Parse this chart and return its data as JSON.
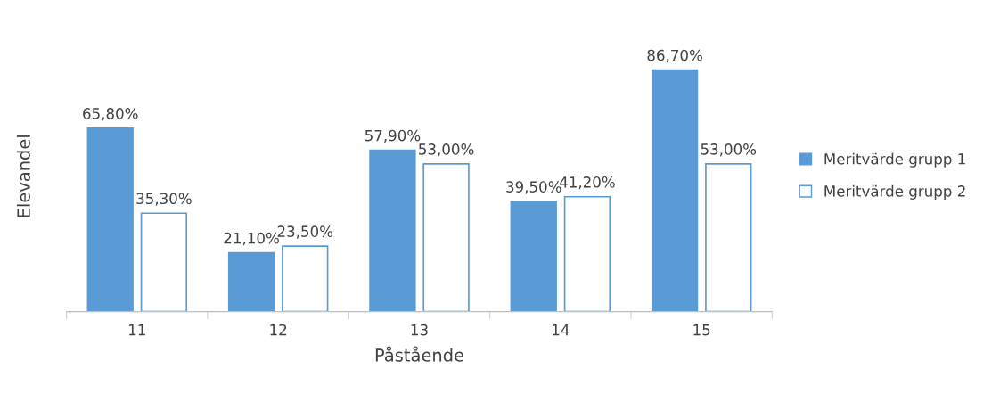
{
  "chart_data": {
    "type": "bar",
    "xlabel": "Påstående",
    "ylabel": "Elevandel",
    "categories": [
      "11",
      "12",
      "13",
      "14",
      "15"
    ],
    "series": [
      {
        "name": "Meritvärde grupp 1",
        "color": "#5b9bd5",
        "values": [
          65.8,
          21.1,
          57.9,
          39.5,
          86.7
        ],
        "value_labels": [
          "65,80%",
          "21,10%",
          "57,90%",
          "39,50%",
          "86,70%"
        ]
      },
      {
        "name": "Meritvärde grupp 2",
        "color": "#ffffff",
        "values": [
          35.3,
          23.5,
          53.0,
          41.2,
          53.0
        ],
        "value_labels": [
          "35,30%",
          "23,50%",
          "53,00%",
          "41,20%",
          "53,00%"
        ]
      }
    ],
    "tick_labels": "x",
    "legend": "right",
    "grid": false
  }
}
